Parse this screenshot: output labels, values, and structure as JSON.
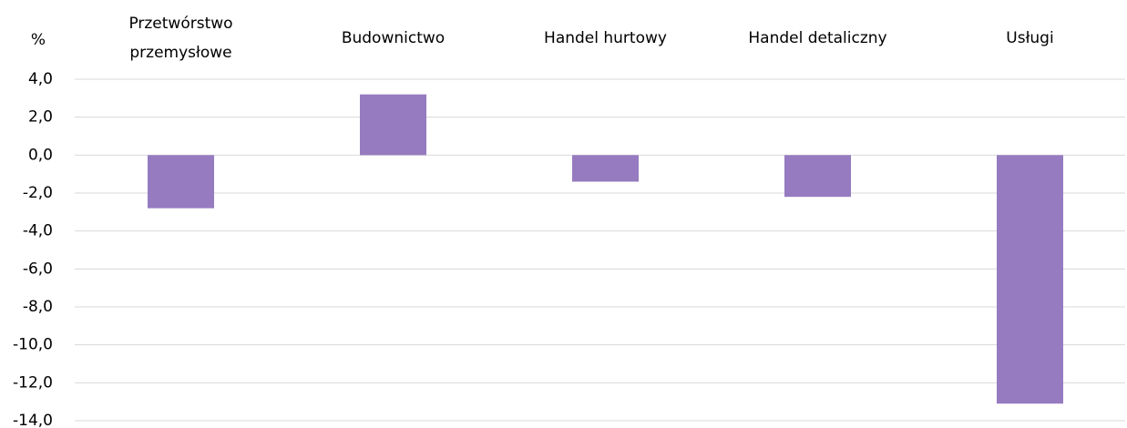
{
  "chart_data": {
    "type": "bar",
    "y_label": "%",
    "categories": [
      "Przetwórstwo\nprzemysłowe",
      "Budownictwo",
      "Handel hurtowy",
      "Handel detaliczny",
      "Usługi"
    ],
    "values": [
      -2.8,
      3.2,
      -1.4,
      -2.2,
      -13.1
    ],
    "color": "#967bc0",
    "ylim": [
      -14,
      4
    ],
    "yticks": [
      {
        "value": 4,
        "label": "4,0"
      },
      {
        "value": 2,
        "label": "2,0"
      },
      {
        "value": 0,
        "label": "0,0"
      },
      {
        "value": -2,
        "label": "-2,0"
      },
      {
        "value": -4,
        "label": "-4,0"
      },
      {
        "value": -6,
        "label": "-6,0"
      },
      {
        "value": -8,
        "label": "-8,0"
      },
      {
        "value": -10,
        "label": "-10,0"
      },
      {
        "value": -12,
        "label": "-12,0"
      },
      {
        "value": -14,
        "label": "-14,0"
      }
    ],
    "grid": true
  }
}
